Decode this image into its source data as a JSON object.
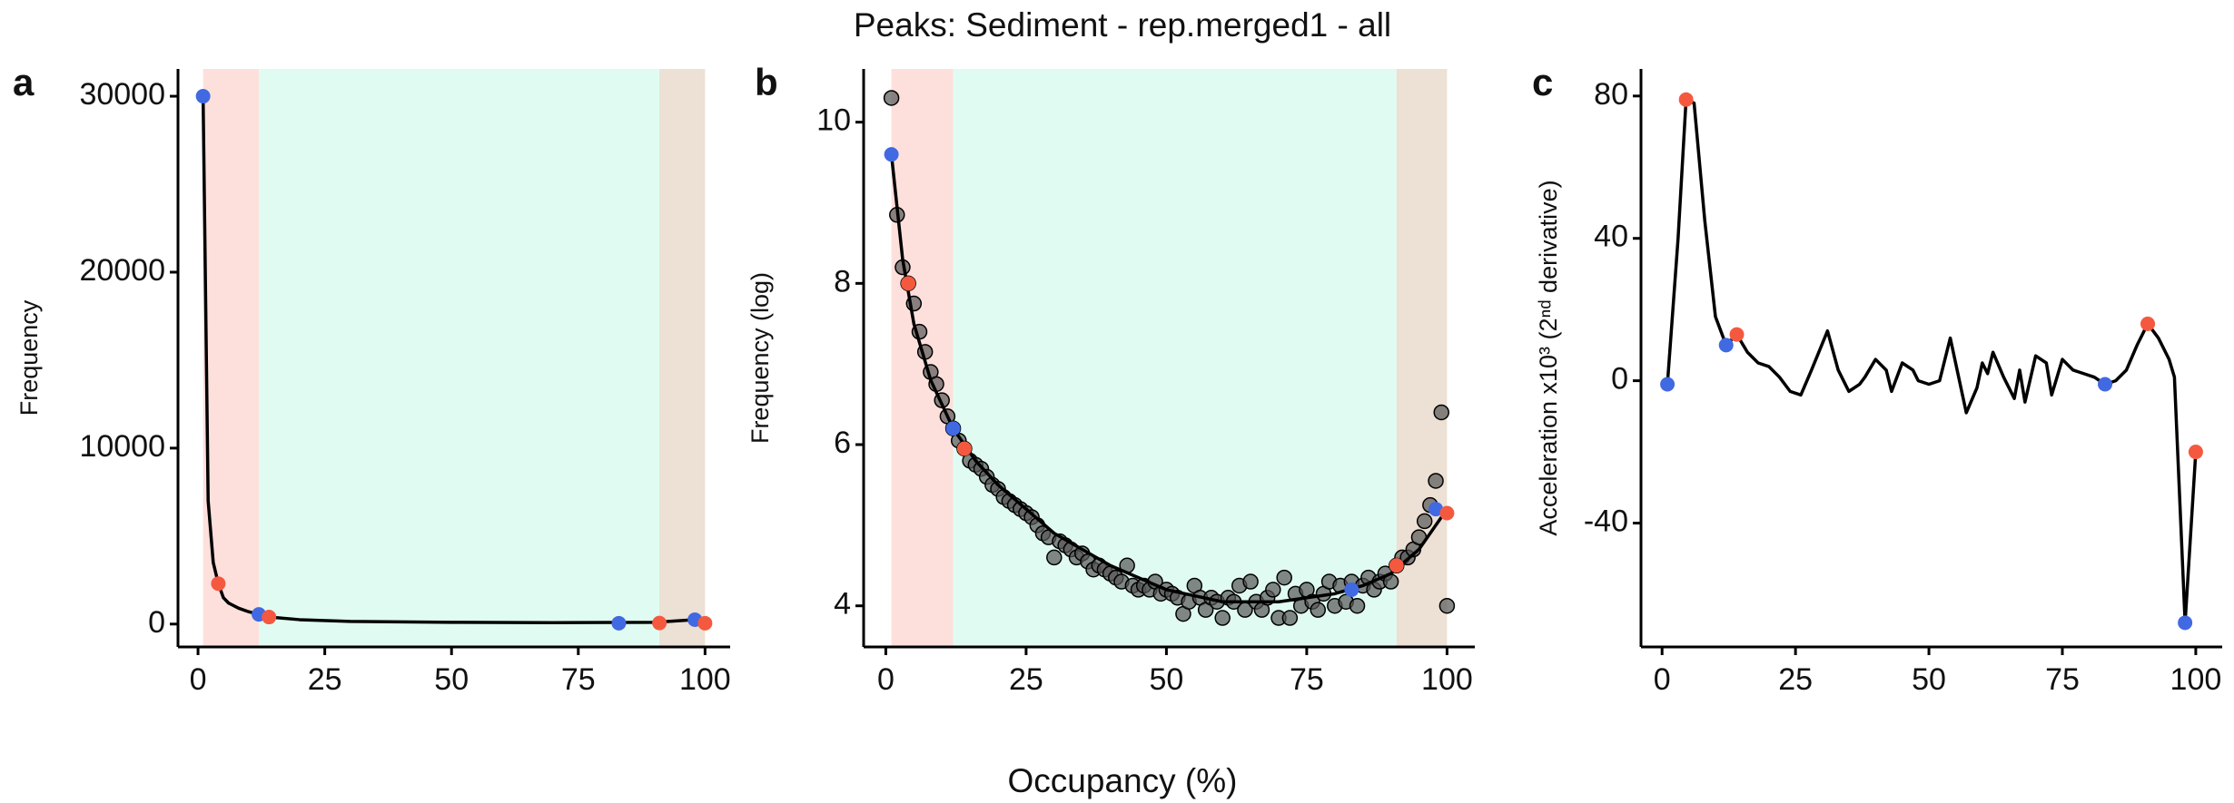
{
  "title": "Peaks: Sediment - rep.merged1 - all",
  "x_label": "Occupancy (%)",
  "chart_data": [
    {
      "type": "line",
      "panel_label": "a",
      "y_label": "Frequency",
      "xlim": [
        -3.95,
        104.95
      ],
      "xticks": [
        0,
        25,
        50,
        75,
        100
      ],
      "ylim": [
        -1300,
        31550
      ],
      "yticks": [
        0,
        10000,
        20000,
        30000
      ],
      "regions": [
        {
          "x": [
            1,
            12
          ],
          "color": "#fde0dc"
        },
        {
          "x": [
            12,
            91
          ],
          "color": "#e0fcf2"
        },
        {
          "x": [
            91,
            100
          ],
          "color": "#ede0d4"
        }
      ],
      "series": [
        {
          "type": "line",
          "color": "#000000",
          "x": [
            1,
            2,
            3,
            4,
            5,
            6,
            8,
            10,
            12,
            14,
            20,
            30,
            50,
            70,
            90,
            98,
            100
          ],
          "values": [
            30000,
            7000,
            3500,
            2300,
            1500,
            1200,
            900,
            700,
            550,
            400,
            250,
            150,
            100,
            80,
            100,
            250,
            50
          ]
        },
        {
          "type": "scatter",
          "color": "#4169e1",
          "x": [
            1,
            12,
            83,
            98
          ],
          "values": [
            30000,
            550,
            50,
            250
          ]
        },
        {
          "type": "scatter",
          "color": "#f4593f",
          "x": [
            4,
            14,
            91,
            100
          ],
          "values": [
            2300,
            400,
            60,
            50
          ]
        }
      ]
    },
    {
      "type": "scatter",
      "panel_label": "b",
      "y_label": "Frequency (log)",
      "xlim": [
        -3.95,
        104.95
      ],
      "xticks": [
        0,
        25,
        50,
        75,
        100
      ],
      "ylim": [
        3.49,
        10.66
      ],
      "yticks": [
        4,
        6,
        8,
        10
      ],
      "regions": [
        {
          "x": [
            1,
            12
          ],
          "color": "#fde0dc"
        },
        {
          "x": [
            12,
            91
          ],
          "color": "#e0fcf2"
        },
        {
          "x": [
            91,
            100
          ],
          "color": "#ede0d4"
        }
      ],
      "series": [
        {
          "type": "scatter",
          "color": "#555555",
          "x": [
            1,
            2,
            3,
            4,
            5,
            6,
            7,
            8,
            9,
            10,
            11,
            12,
            13,
            14,
            15,
            16,
            17,
            18,
            19,
            20,
            21,
            22,
            23,
            24,
            25,
            26,
            27,
            28,
            29,
            30,
            31,
            32,
            33,
            34,
            35,
            36,
            37,
            38,
            39,
            40,
            41,
            42,
            43,
            44,
            45,
            46,
            47,
            48,
            49,
            50,
            51,
            52,
            53,
            54,
            55,
            56,
            57,
            58,
            59,
            60,
            61,
            62,
            63,
            64,
            65,
            66,
            67,
            68,
            69,
            70,
            71,
            72,
            73,
            74,
            75,
            76,
            77,
            78,
            79,
            80,
            81,
            82,
            83,
            84,
            85,
            86,
            87,
            88,
            89,
            90,
            91,
            92,
            93,
            94,
            95,
            96,
            97,
            98,
            99,
            100
          ],
          "values": [
            10.3,
            8.85,
            8.2,
            8.0,
            7.75,
            7.4,
            7.15,
            6.9,
            6.75,
            6.55,
            6.35,
            6.2,
            6.05,
            5.95,
            5.8,
            5.75,
            5.7,
            5.6,
            5.5,
            5.45,
            5.35,
            5.3,
            5.25,
            5.2,
            5.15,
            5.1,
            5.0,
            4.9,
            4.85,
            4.6,
            4.8,
            4.75,
            4.7,
            4.6,
            4.65,
            4.55,
            4.45,
            4.5,
            4.45,
            4.4,
            4.35,
            4.3,
            4.5,
            4.25,
            4.2,
            4.25,
            4.2,
            4.3,
            4.15,
            4.2,
            4.15,
            4.1,
            3.9,
            4.05,
            4.25,
            4.1,
            3.95,
            4.1,
            4.05,
            3.85,
            4.1,
            4.05,
            4.25,
            3.95,
            4.3,
            4.05,
            3.95,
            4.1,
            4.2,
            3.85,
            4.35,
            3.85,
            4.15,
            4.0,
            4.2,
            4.05,
            3.95,
            4.15,
            4.3,
            4.0,
            4.25,
            4.05,
            4.3,
            4.0,
            4.25,
            4.35,
            4.2,
            4.3,
            4.4,
            4.3,
            4.5,
            4.6,
            4.6,
            4.7,
            4.85,
            5.05,
            5.25,
            5.55,
            6.4,
            4.0
          ]
        },
        {
          "type": "line",
          "color": "#000000",
          "x": [
            1,
            3,
            5,
            8,
            12,
            16,
            20,
            25,
            30,
            35,
            40,
            50,
            60,
            70,
            80,
            85,
            90,
            95,
            100
          ],
          "values": [
            9.6,
            8.3,
            7.5,
            6.8,
            6.2,
            5.8,
            5.5,
            5.2,
            4.9,
            4.7,
            4.5,
            4.2,
            4.05,
            4.05,
            4.15,
            4.25,
            4.4,
            4.7,
            5.2
          ]
        },
        {
          "type": "scatter",
          "color": "#4169e1",
          "x": [
            1,
            12,
            83,
            98
          ],
          "values": [
            9.6,
            6.2,
            4.2,
            5.2
          ]
        },
        {
          "type": "scatter",
          "color": "#f4593f",
          "x": [
            4,
            14,
            91,
            100
          ],
          "values": [
            8.0,
            5.95,
            4.5,
            5.15
          ]
        }
      ]
    },
    {
      "type": "line",
      "panel_label": "c",
      "y_label": "Acceleration x10³ (2ⁿᵈ derivative)",
      "xlim": [
        -3.95,
        104.95
      ],
      "xticks": [
        0,
        25,
        50,
        75,
        100
      ],
      "ylim": [
        -74.8,
        87.6
      ],
      "yticks": [
        -40,
        0,
        40,
        80
      ],
      "series": [
        {
          "type": "line",
          "color": "#000000",
          "x": [
            1,
            3,
            4.5,
            6,
            8,
            10,
            12,
            14,
            16,
            18,
            20,
            22,
            24,
            26,
            28,
            31,
            33,
            35,
            37,
            38,
            40,
            42,
            43,
            45,
            47,
            48,
            50,
            52,
            54,
            55,
            57,
            59,
            60,
            61,
            62,
            64,
            66,
            67,
            68,
            70,
            72,
            73,
            75,
            77,
            79,
            81,
            83,
            85,
            87,
            89,
            91,
            93,
            95,
            96,
            98,
            100
          ],
          "values": [
            -1,
            40,
            79,
            78,
            45,
            18,
            10,
            13,
            8,
            5,
            4,
            1,
            -3,
            -4,
            3,
            14,
            3,
            -3,
            -1,
            1,
            6,
            3,
            -3,
            5,
            3,
            0,
            -1,
            0,
            12,
            5,
            -9,
            -2,
            5,
            2,
            8,
            1,
            -5,
            3,
            -6,
            7,
            5,
            -4,
            6,
            3,
            2,
            1,
            -1,
            0,
            3,
            10,
            16,
            12,
            6,
            1,
            -68,
            -20
          ]
        },
        {
          "type": "scatter",
          "color": "#4169e1",
          "x": [
            1,
            12,
            83,
            98
          ],
          "values": [
            -1,
            10,
            -1,
            -68
          ]
        },
        {
          "type": "scatter",
          "color": "#f4593f",
          "x": [
            4.5,
            14,
            91,
            100
          ],
          "values": [
            79,
            13,
            16,
            -20
          ]
        }
      ]
    }
  ]
}
